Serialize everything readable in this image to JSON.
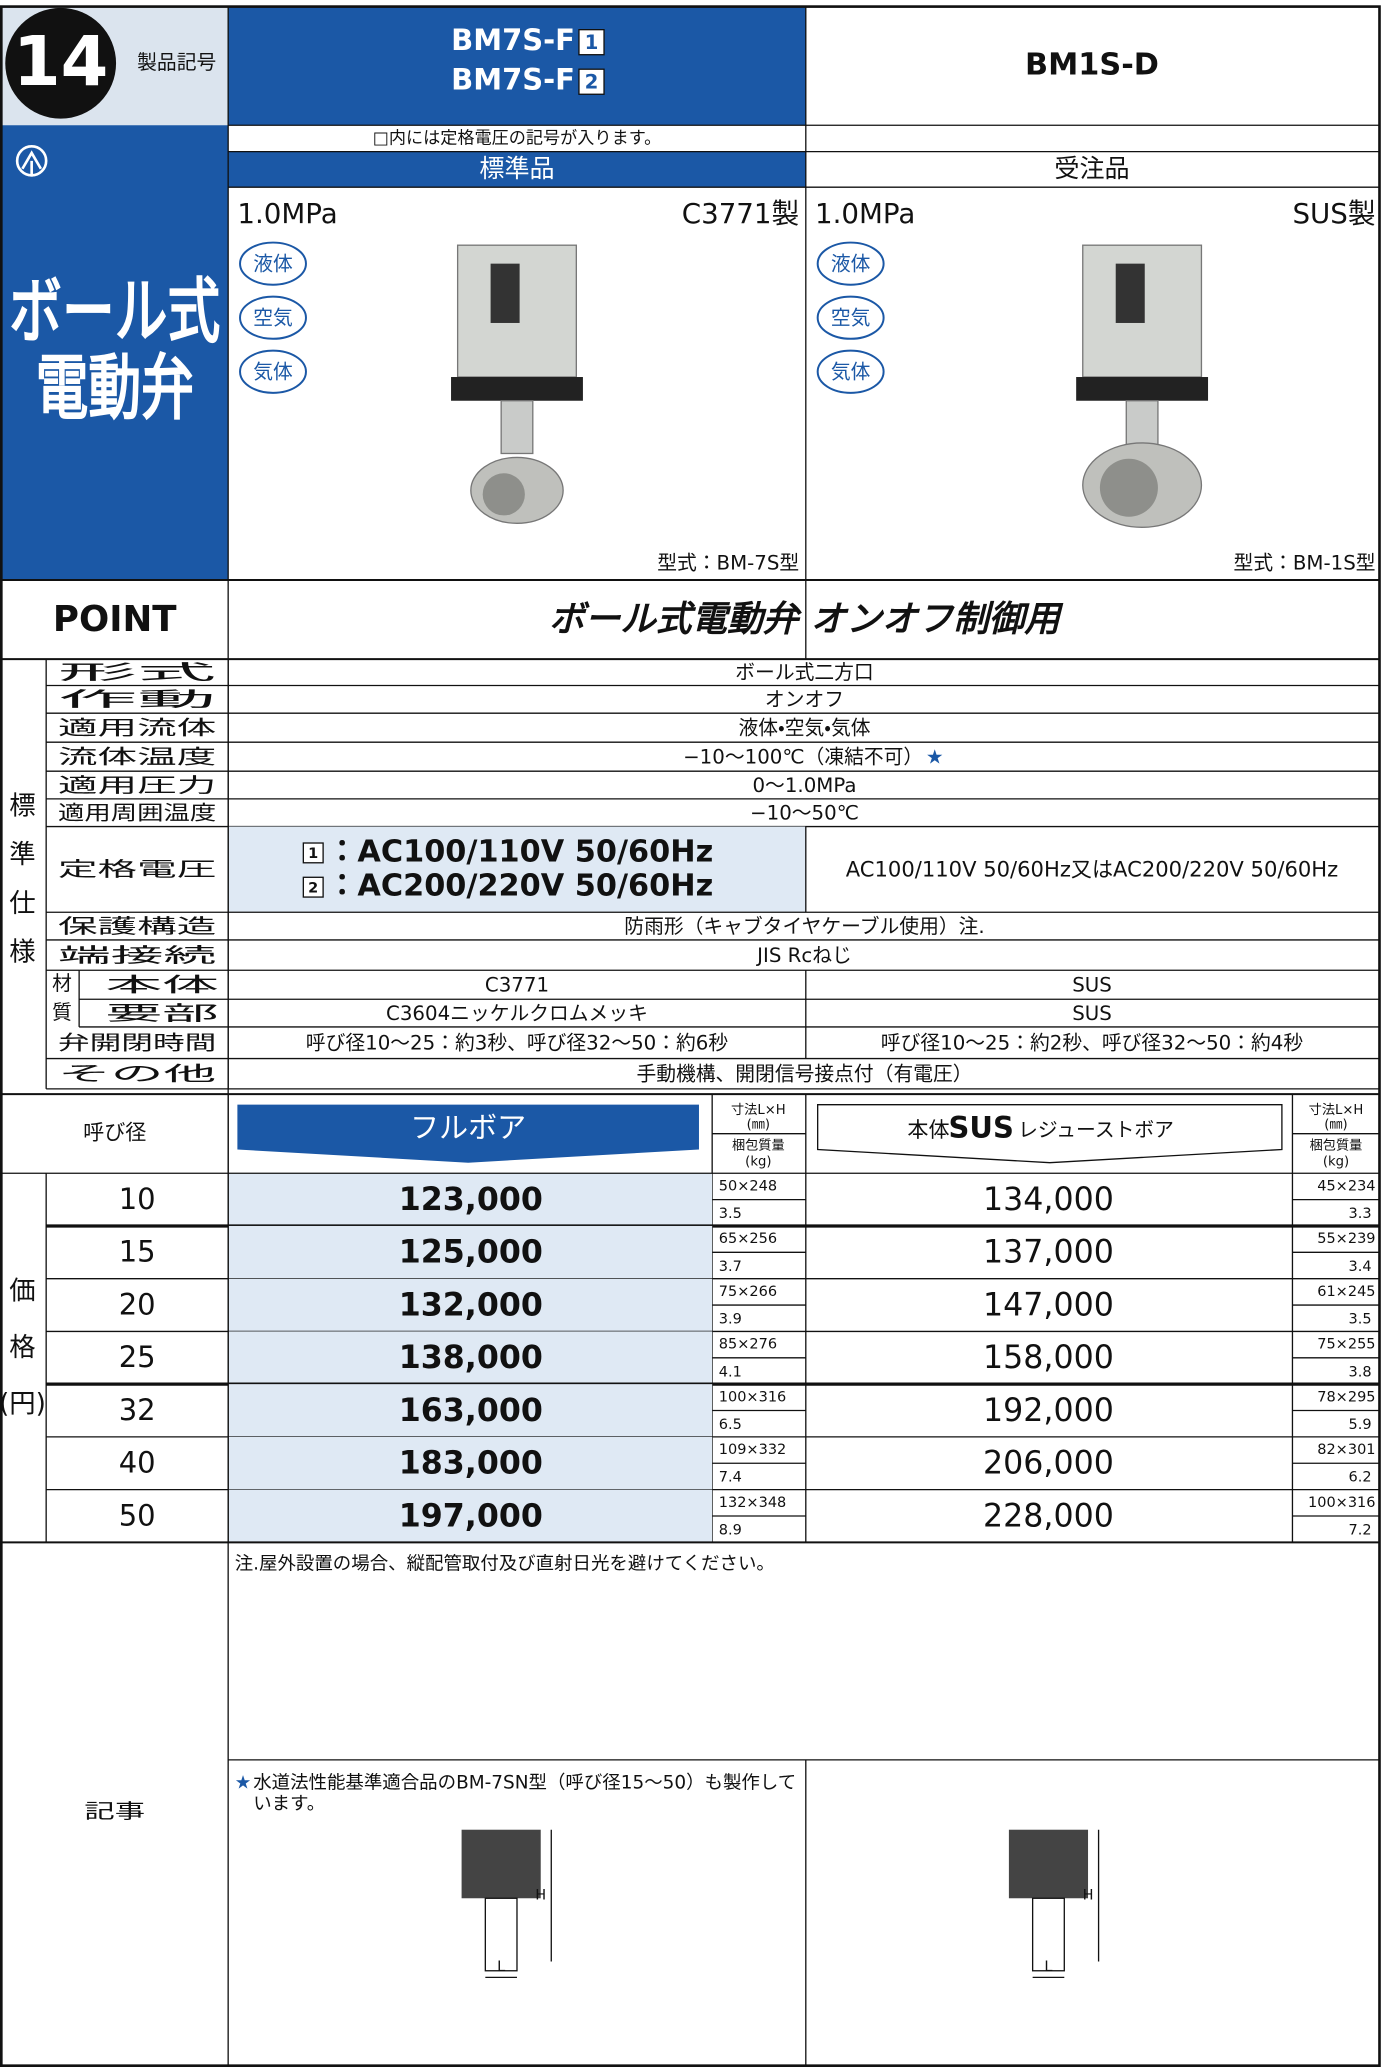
{
  "header": {
    "badge": "14",
    "label": "製品記号",
    "models": [
      {
        "lines": [
          {
            "text": "BM7S-F",
            "box": "1"
          },
          {
            "text": "BM7S-F",
            "box": "2"
          }
        ]
      },
      {
        "lines": [
          {
            "text": "BM1S-D"
          }
        ]
      }
    ],
    "note": "□内には定格電圧の記号が入ります。",
    "categories": [
      "標準品",
      "受注品"
    ],
    "title_lines": [
      "ボール式",
      "電動弁"
    ]
  },
  "products": [
    {
      "pressure": "1.0MPa",
      "material": "C3771製",
      "fluids": [
        "液体",
        "空気",
        "気体"
      ],
      "model": "型式：BM-7S型"
    },
    {
      "pressure": "1.0MPa",
      "material": "SUS製",
      "fluids": [
        "液体",
        "空気",
        "気体"
      ],
      "model": "型式：BM-1S型"
    }
  ],
  "point": {
    "label": "POINT",
    "text": "ボール式電動弁 オンオフ制御用"
  },
  "specs": {
    "group_label": [
      "標",
      "準",
      "仕",
      "様"
    ],
    "material_label": [
      "材",
      "質"
    ],
    "rows": [
      {
        "label": "形式",
        "value": "ボール式二方口"
      },
      {
        "label": "作動",
        "value": "オンオフ"
      },
      {
        "label": "適用流体",
        "value": "液体・空気・気体"
      },
      {
        "label": "流体温度",
        "value": "−10〜100℃（凍結不可）",
        "mark": "★"
      },
      {
        "label": "適用圧力",
        "value": "0〜1.0MPa"
      },
      {
        "label": "適用周囲温度",
        "value": "−10〜50℃"
      },
      {
        "label": "定格電圧",
        "boxed": [
          {
            "box": "1",
            "text": "：AC100/110V 50/60Hz"
          },
          {
            "box": "2",
            "text": "：AC200/220V 50/60Hz"
          }
        ],
        "value2": "AC100/110V 50/60Hz又はAC200/220V 50/60Hz"
      },
      {
        "label": "保護構造",
        "value": "防雨形（キャブタイヤケーブル使用）注."
      },
      {
        "label": "端接続",
        "value": "JIS Rcねじ"
      },
      {
        "label": "本体",
        "material": true,
        "values": [
          "C3771",
          "SUS"
        ]
      },
      {
        "label": "要部",
        "material": true,
        "values": [
          "C3604ニッケルクロムメッキ",
          "SUS"
        ]
      },
      {
        "label": "弁開閉時間",
        "values": [
          "呼び径10〜25：約3秒、呼び径32〜50：約6秒",
          "呼び径10〜25：約2秒、呼び径32〜50：約4秒"
        ]
      },
      {
        "label": "その他",
        "value": "手動機構、開閉信号接点付（有電圧）"
      }
    ]
  },
  "price": {
    "group_label": [
      "価",
      "格",
      "(円)"
    ],
    "size_label": "呼び径",
    "full_bore": "フルボア",
    "dim_label": [
      "寸法L×H",
      "(㎜)"
    ],
    "weight_label": [
      "梱包質量",
      "(kg)"
    ],
    "reduced_bore": {
      "prefix": "本体",
      "material": "SUS",
      "text": "レジューストボア"
    },
    "rows": [
      {
        "size": "10",
        "full": {
          "price": "123,000",
          "dim": "50×248",
          "weight": "3.5"
        },
        "reduced": {
          "price": "134,000",
          "dim": "45×234",
          "weight": "3.3"
        }
      },
      {
        "size": "15",
        "full": {
          "price": "125,000",
          "dim": "65×256",
          "weight": "3.7"
        },
        "reduced": {
          "price": "137,000",
          "dim": "55×239",
          "weight": "3.4"
        }
      },
      {
        "size": "20",
        "full": {
          "price": "132,000",
          "dim": "75×266",
          "weight": "3.9"
        },
        "reduced": {
          "price": "147,000",
          "dim": "61×245",
          "weight": "3.5"
        }
      },
      {
        "size": "25",
        "full": {
          "price": "138,000",
          "dim": "85×276",
          "weight": "4.1"
        },
        "reduced": {
          "price": "158,000",
          "dim": "75×255",
          "weight": "3.8"
        }
      },
      {
        "size": "32",
        "full": {
          "price": "163,000",
          "dim": "100×316",
          "weight": "6.5"
        },
        "reduced": {
          "price": "192,000",
          "dim": "78×295",
          "weight": "5.9"
        }
      },
      {
        "size": "40",
        "full": {
          "price": "183,000",
          "dim": "109×332",
          "weight": "7.4"
        },
        "reduced": {
          "price": "206,000",
          "dim": "82×301",
          "weight": "6.2"
        }
      },
      {
        "size": "50",
        "full": {
          "price": "197,000",
          "dim": "132×348",
          "weight": "8.9"
        },
        "reduced": {
          "price": "228,000",
          "dim": "100×316",
          "weight": "7.2"
        }
      }
    ]
  },
  "notes": {
    "label": "記事",
    "note": "注.屋外設置の場合、縦配管取付及び直射日光を避けてください。",
    "star": "★",
    "star_note": [
      "水道法性能基準適合品のBM-7SN型（呼び径15〜50）も製作して",
      "います。"
    ],
    "diagram_labels": [
      "H",
      "L"
    ]
  }
}
